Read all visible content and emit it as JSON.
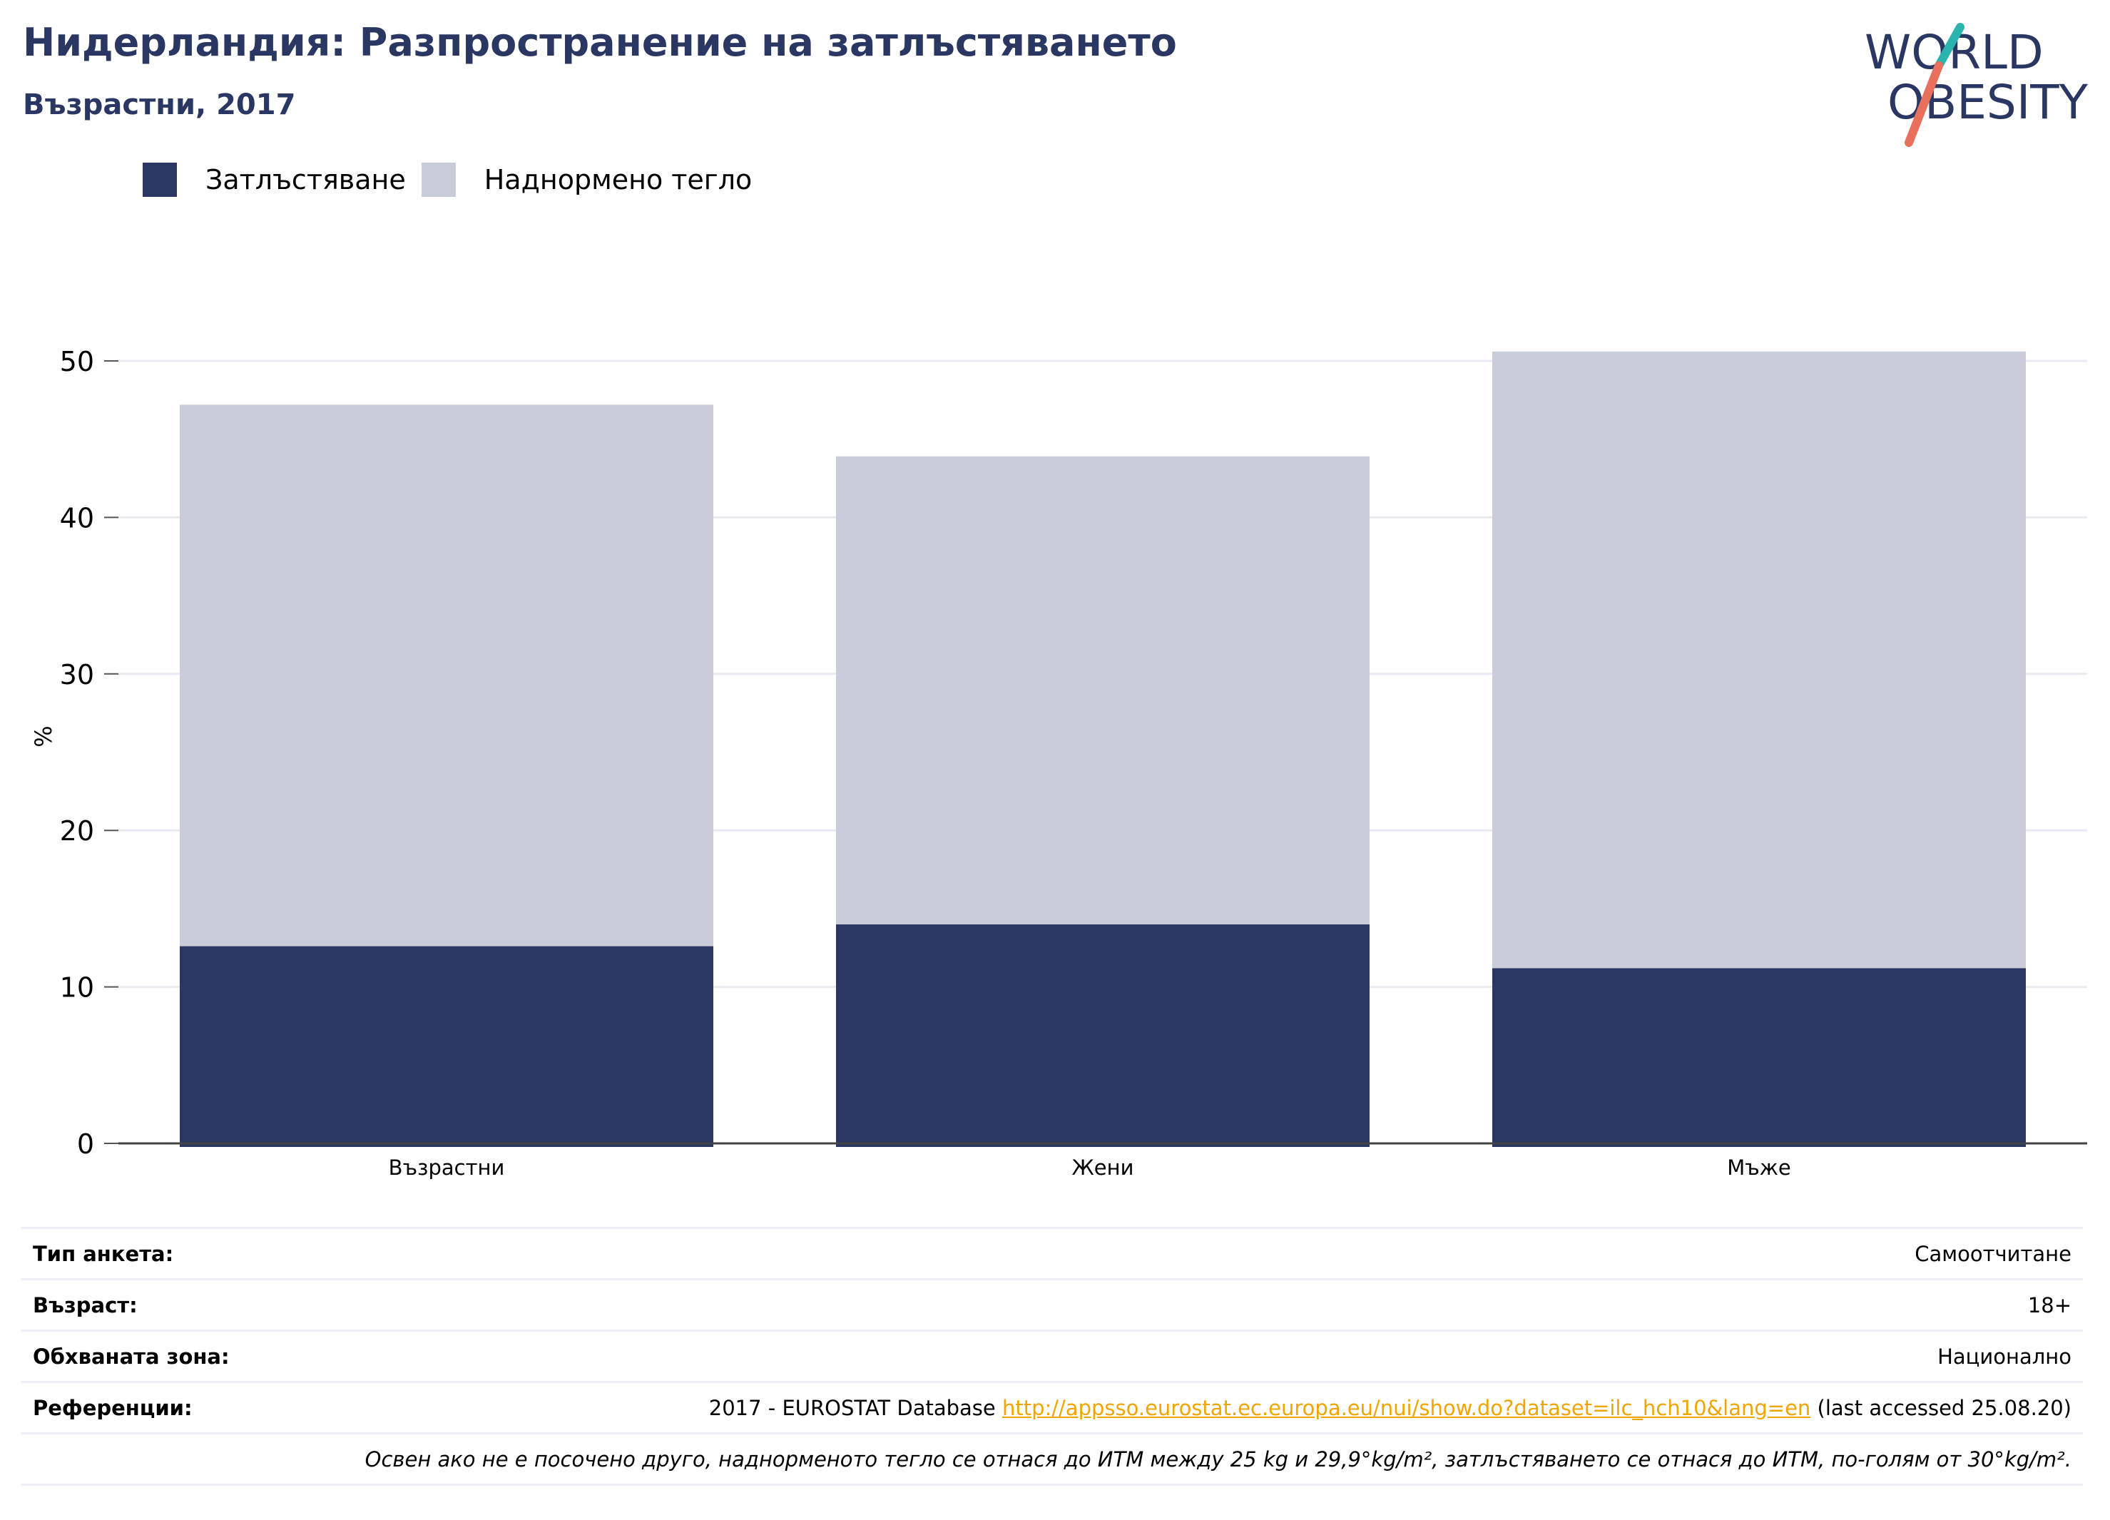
{
  "header": {
    "title": "Нидерландия: Разпространение на затлъстяването",
    "subtitle": "Възрастни, 2017",
    "logo_line1": "WORLD",
    "logo_line2": "OBESITY"
  },
  "colors": {
    "obesity": "#2b3763",
    "overweight": "#cacdd9",
    "link": "#f0a500"
  },
  "chart_data": {
    "type": "bar",
    "stacked": true,
    "categories": [
      "Възрастни",
      "Жени",
      "Мъже"
    ],
    "series": [
      {
        "name": "Затлъстяване",
        "values": [
          12.6,
          14.0,
          11.2
        ]
      },
      {
        "name": "Наднормено тегло",
        "values": [
          34.6,
          29.9,
          39.4
        ]
      }
    ],
    "totals": [
      47.2,
      43.9,
      50.6
    ],
    "ylabel": "%",
    "ylim": [
      0,
      52
    ],
    "yticks": [
      0,
      10,
      20,
      30,
      40,
      50
    ],
    "grid": true,
    "legend_position": "top-left"
  },
  "info": {
    "rows": [
      {
        "label": "Тип анкета:",
        "value": "Самоотчитане"
      },
      {
        "label": "Възраст:",
        "value": "18+"
      },
      {
        "label": "Обхваната зона:",
        "value": "Национално"
      }
    ],
    "reference": {
      "label": "Референции:",
      "prefix": "2017 - EUROSTAT Database ",
      "url": "http://appsso.eurostat.ec.europa.eu/nui/show.do?dataset=ilc_hch10&lang=en",
      "suffix": " (last accessed 25.08.20)"
    },
    "note": "Освен ако не е посочено друго, наднорменото тегло се отнася до ИТМ между 25 kg и 29,9°kg/m², затлъстяването се отнася до ИТМ, по-голям от 30°kg/m²."
  }
}
